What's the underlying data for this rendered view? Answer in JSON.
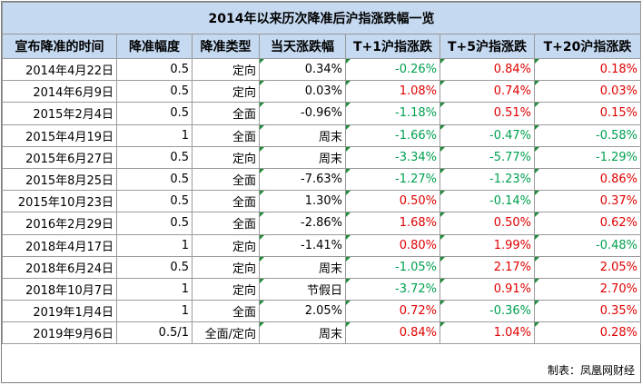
{
  "title": "2014年以来历次降准后沪指涨跌幅一览",
  "headers": [
    "宣布降准的时间",
    "降准幅度",
    "降准类型",
    "当天涨跌幅",
    "T+1沪指涨跌",
    "T+5沪指涨跌",
    "T+20沪指涨跌"
  ],
  "rows": [
    {
      "date": "2014年4月22日",
      "size": "0.5",
      "type": "定向",
      "day": "0.34%",
      "t1": "-0.26%",
      "t5": "0.84%",
      "t20": "0.18%"
    },
    {
      "date": "2014年6月9日",
      "size": "0.5",
      "type": "定向",
      "day": "0.03%",
      "t1": "1.08%",
      "t5": "0.74%",
      "t20": "0.03%"
    },
    {
      "date": "2015年2月4日",
      "size": "0.5",
      "type": "全面",
      "day": "-0.96%",
      "t1": "-1.18%",
      "t5": "0.51%",
      "t20": "0.15%"
    },
    {
      "date": "2015年4月19日",
      "size": "1",
      "type": "全面",
      "day": "周末",
      "t1": "-1.66%",
      "t5": "-0.47%",
      "t20": "-0.58%"
    },
    {
      "date": "2015年6月27日",
      "size": "0.5",
      "type": "定向",
      "day": "周末",
      "t1": "-3.34%",
      "t5": "-5.77%",
      "t20": "-1.29%"
    },
    {
      "date": "2015年8月25日",
      "size": "0.5",
      "type": "全面",
      "day": "-7.63%",
      "t1": "-1.27%",
      "t5": "-1.23%",
      "t20": "0.86%"
    },
    {
      "date": "2015年10月23日",
      "size": "0.5",
      "type": "全面",
      "day": "1.30%",
      "t1": "0.50%",
      "t5": "-0.14%",
      "t20": "0.37%"
    },
    {
      "date": "2016年2月29日",
      "size": "0.5",
      "type": "全面",
      "day": "-2.86%",
      "t1": "1.68%",
      "t5": "0.50%",
      "t20": "0.62%"
    },
    {
      "date": "2018年4月17日",
      "size": "1",
      "type": "定向",
      "day": "-1.41%",
      "t1": "0.80%",
      "t5": "1.99%",
      "t20": "-0.48%"
    },
    {
      "date": "2018年6月24日",
      "size": "0.5",
      "type": "定向",
      "day": "周末",
      "t1": "-1.05%",
      "t5": "2.17%",
      "t20": "2.05%"
    },
    {
      "date": "2018年10月7日",
      "size": "1",
      "type": "定向",
      "day": "节假日",
      "t1": "-3.72%",
      "t5": "0.91%",
      "t20": "2.70%"
    },
    {
      "date": "2019年1月4日",
      "size": "1",
      "type": "全面",
      "day": "2.05%",
      "t1": "0.72%",
      "t5": "-0.36%",
      "t20": "0.35%"
    },
    {
      "date": "2019年9月6日",
      "size": "0.5/1",
      "type": "全面/定向",
      "day": "周末",
      "t1": "0.84%",
      "t5": "1.04%",
      "t20": "0.28%"
    }
  ],
  "footer": "制表：凤凰网财经",
  "colors": {
    "header_bg": "#c5d9f1",
    "positive": "#e00000",
    "negative": "#00a050"
  }
}
